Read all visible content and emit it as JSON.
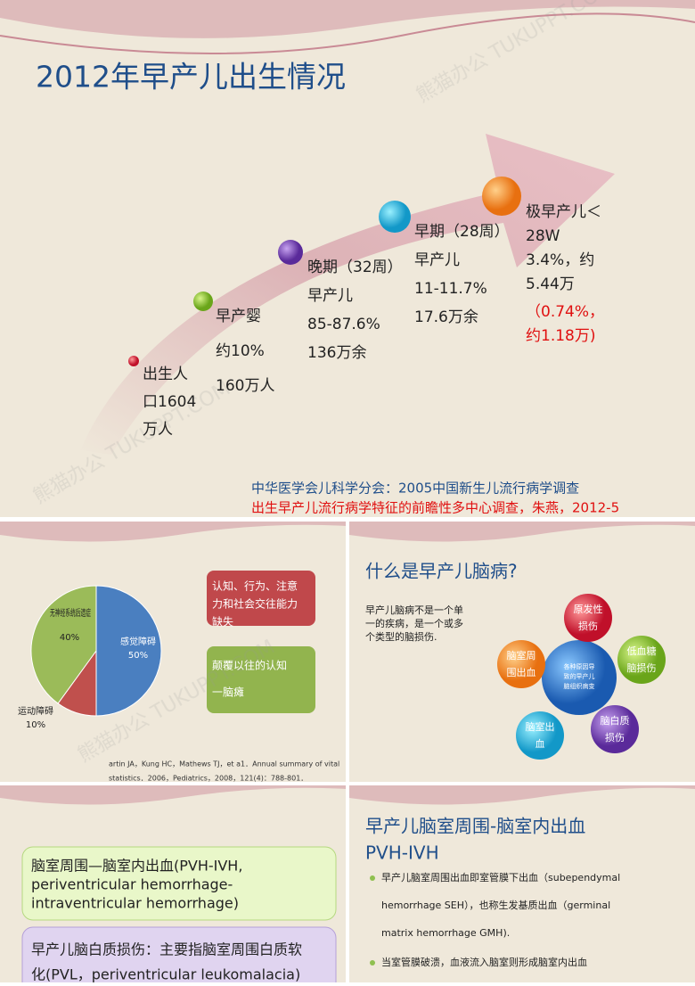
{
  "watermark": "熊猫办公 TUKUPPT.COM",
  "slides": [
    {
      "title": "2012年早产儿出生情况",
      "stages": [
        {
          "lines": [
            "出生人",
            "口1604",
            "万人"
          ]
        },
        {
          "lines": [
            "早产婴",
            "约10%",
            "160万人"
          ]
        },
        {
          "lines": [
            "晚期（32周）",
            "早产儿",
            "85-87.6%",
            "136万余"
          ]
        },
        {
          "lines": [
            "早期（28周）",
            "早产儿",
            "11-11.7%",
            "17.6万余"
          ]
        },
        {
          "lines": [
            "极早产儿＜",
            "28W",
            "3.4%，约",
            "5.44万"
          ],
          "note": [
            "（0.74%，",
            "约1.18万)"
          ]
        }
      ],
      "references": [
        "中华医学会儿科学分会：2005中国新生儿流行病学调查",
        "出生早产儿流行病学特征的前瞻性多中心调查，朱燕，2012-5"
      ]
    },
    {
      "pie": {
        "type": "pie",
        "slices": [
          {
            "name": "感觉障碍",
            "value": 50,
            "label": "50%",
            "color": "#4a7fc0"
          },
          {
            "name": "运动障碍",
            "value": 10,
            "label": "10%",
            "color": "#c0504d"
          },
          {
            "name": "无神经系统后遗症",
            "value": 40,
            "label": "40%",
            "color": "#9bbb59"
          }
        ]
      },
      "boxes": [
        [
          "认知、行为、注意",
          "力和社会交往能力",
          "缺失"
        ],
        [
          "颠覆以往的认知",
          "一脑瘫"
        ]
      ],
      "reference": [
        "artin JA，Kung HC，Mathews TJ，et a1．Annual summary of vital",
        "statistics．2006，Pediatrics，2008，121(4)：788-801．"
      ]
    },
    {
      "title": "什么是早产儿脑病?",
      "text": [
        "早产儿脑病不是一个单",
        "一的疾病，是一个或多",
        "个类型的脑损伤."
      ],
      "center": [
        "各种原因导",
        "致的早产儿",
        "脑组织病变"
      ],
      "nodes": [
        [
          "原发性",
          "损伤"
        ],
        [
          "低血糖",
          "脑损伤"
        ],
        [
          "脑白质",
          "损伤"
        ],
        [
          "脑室出",
          "血"
        ],
        [
          "脑室周",
          "围出血"
        ]
      ]
    },
    {
      "boxes": [
        [
          "脑室周围—脑室内出血(PVH-IVH,",
          "periventricular hemorrhage-",
          "intraventricular hemorrhage)"
        ],
        [
          "早产儿脑白质损伤：主要指脑室周围白质软",
          "化(PVL，periventricular leukomalacia)"
        ]
      ]
    },
    {
      "title": [
        "早产儿脑室周围-脑室内出血",
        "PVH-IVH"
      ],
      "bullets": [
        [
          "早产儿脑室周围出血即室管膜下出血（subependymal",
          "hemorrhage SEH），也称生发基质出血（germinal",
          "matrix hemorrhage GMH)."
        ],
        [
          "当室管膜破溃，血液流入脑室则形成脑室内出血"
        ]
      ]
    }
  ]
}
